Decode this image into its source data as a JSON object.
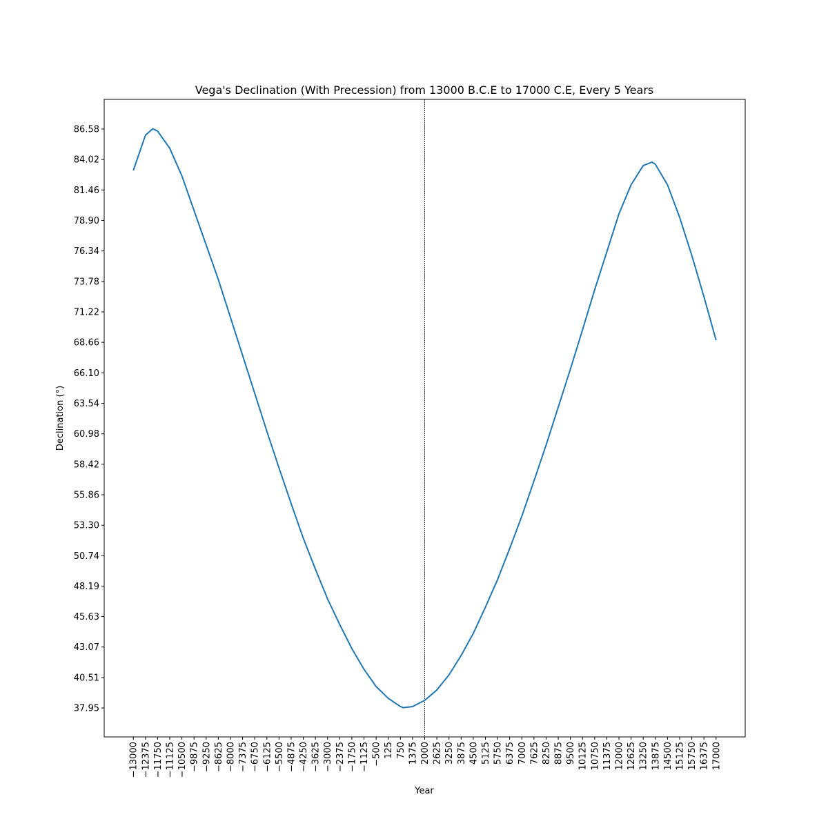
{
  "chart_data": {
    "type": "line",
    "title": "Vega's Declination (With Precession) from 13000 B.C.E to 17000 C.E, Every 5 Years",
    "x_label": "Year",
    "y_label": "Declination (°)",
    "x": [
      -13000,
      -12375,
      -12000,
      -11750,
      -11125,
      -10500,
      -9875,
      -9250,
      -8625,
      -8000,
      -7375,
      -6750,
      -6125,
      -5500,
      -4875,
      -4250,
      -3625,
      -3000,
      -2375,
      -1750,
      -1125,
      -500,
      125,
      750,
      900,
      1375,
      2000,
      2625,
      3250,
      3875,
      4500,
      5125,
      5750,
      6375,
      7000,
      7625,
      8250,
      8875,
      9500,
      10125,
      10750,
      11375,
      12000,
      12625,
      13250,
      13700,
      13875,
      14500,
      15125,
      15750,
      16375,
      17000
    ],
    "series": [
      {
        "name": "Declination",
        "color": "#1f77b4",
        "values": [
          83.1,
          86.06,
          86.6,
          86.4,
          84.96,
          82.64,
          79.74,
          76.84,
          73.94,
          70.76,
          67.57,
          64.38,
          61.19,
          58.12,
          55.11,
          52.21,
          49.6,
          47.11,
          44.96,
          42.94,
          41.2,
          39.75,
          38.76,
          38.07,
          37.98,
          38.07,
          38.59,
          39.46,
          40.73,
          42.36,
          44.21,
          46.41,
          48.73,
          51.34,
          54.06,
          57.02,
          60.03,
          63.22,
          66.41,
          69.71,
          73.08,
          76.26,
          79.45,
          81.89,
          83.51,
          83.8,
          83.62,
          81.89,
          79.16,
          75.97,
          72.5,
          68.84
        ]
      }
    ],
    "vline": 2000,
    "xlim": [
      -14500,
      18500
    ],
    "ylim": [
      35.52,
      89.07
    ],
    "xticks": [
      {
        "value": -13000,
        "label": "−13000"
      },
      {
        "value": -12375,
        "label": "−12375"
      },
      {
        "value": -11750,
        "label": "−11750"
      },
      {
        "value": -11125,
        "label": "−11125"
      },
      {
        "value": -10500,
        "label": "−10500"
      },
      {
        "value": -9875,
        "label": "−9875"
      },
      {
        "value": -9250,
        "label": "−9250"
      },
      {
        "value": -8625,
        "label": "−8625"
      },
      {
        "value": -8000,
        "label": "−8000"
      },
      {
        "value": -7375,
        "label": "−7375"
      },
      {
        "value": -6750,
        "label": "−6750"
      },
      {
        "value": -6125,
        "label": "−6125"
      },
      {
        "value": -5500,
        "label": "−5500"
      },
      {
        "value": -4875,
        "label": "−4875"
      },
      {
        "value": -4250,
        "label": "−4250"
      },
      {
        "value": -3625,
        "label": "−3625"
      },
      {
        "value": -3000,
        "label": "−3000"
      },
      {
        "value": -2375,
        "label": "−2375"
      },
      {
        "value": -1750,
        "label": "−1750"
      },
      {
        "value": -1125,
        "label": "−1125"
      },
      {
        "value": -500,
        "label": "−500"
      },
      125,
      750,
      1375,
      2000,
      2625,
      3250,
      3875,
      4500,
      5125,
      5750,
      6375,
      7000,
      7625,
      8250,
      8875,
      9500,
      10125,
      10750,
      11375,
      12000,
      12625,
      13250,
      13875,
      14500,
      15125,
      15750,
      16375,
      17000
    ],
    "yticks": [
      37.95,
      40.51,
      43.07,
      45.63,
      48.19,
      50.74,
      53.3,
      55.86,
      58.42,
      60.98,
      63.54,
      66.1,
      68.66,
      71.22,
      73.78,
      76.34,
      78.9,
      81.46,
      84.02,
      86.58
    ],
    "ytick_labels": [
      "37.95",
      "40.51",
      "43.07",
      "45.63",
      "48.19",
      "50.74",
      "53.30",
      "55.86",
      "58.42",
      "60.98",
      "63.54",
      "66.10",
      "68.66",
      "71.22",
      "73.78",
      "76.34",
      "78.90",
      "81.46",
      "84.02",
      "86.58"
    ]
  }
}
